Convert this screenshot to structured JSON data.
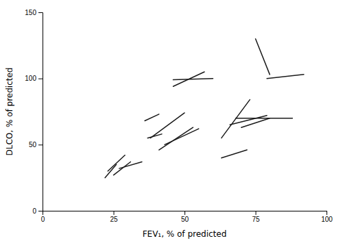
{
  "chart_data": {
    "type": "line",
    "xlabel": "FEV₁, % of predicted",
    "ylabel": "DLCO, % of predicted",
    "color": "#1a1a1a",
    "xlim": [
      0,
      100
    ],
    "ylim": [
      0,
      150
    ],
    "xticks": [
      0,
      25,
      50,
      75,
      100
    ],
    "yticks": [
      0,
      50,
      100,
      150
    ],
    "series": [
      {
        "x": [
          22,
          26
        ],
        "values": [
          25,
          35
        ]
      },
      {
        "x": [
          23,
          29
        ],
        "values": [
          30,
          42
        ]
      },
      {
        "x": [
          25,
          31
        ],
        "values": [
          27,
          37
        ]
      },
      {
        "x": [
          27,
          35
        ],
        "values": [
          32,
          37
        ]
      },
      {
        "x": [
          37,
          42
        ],
        "values": [
          55,
          58
        ]
      },
      {
        "x": [
          38,
          50
        ],
        "values": [
          55,
          74
        ]
      },
      {
        "x": [
          41,
          53
        ],
        "values": [
          46,
          63
        ]
      },
      {
        "x": [
          43,
          55
        ],
        "values": [
          50,
          62
        ]
      },
      {
        "x": [
          36,
          41
        ],
        "values": [
          68,
          73
        ]
      },
      {
        "x": [
          46,
          57
        ],
        "values": [
          94,
          105
        ]
      },
      {
        "x": [
          46,
          60
        ],
        "values": [
          99,
          100
        ]
      },
      {
        "x": [
          63,
          73
        ],
        "values": [
          55,
          84
        ]
      },
      {
        "x": [
          66,
          79
        ],
        "values": [
          65,
          72
        ]
      },
      {
        "x": [
          68,
          88
        ],
        "values": [
          70,
          70
        ]
      },
      {
        "x": [
          70,
          80
        ],
        "values": [
          63,
          70
        ]
      },
      {
        "x": [
          75,
          80
        ],
        "values": [
          130,
          103
        ]
      },
      {
        "x": [
          79,
          92
        ],
        "values": [
          100,
          103
        ]
      },
      {
        "x": [
          63,
          72
        ],
        "values": [
          40,
          46
        ]
      }
    ]
  }
}
